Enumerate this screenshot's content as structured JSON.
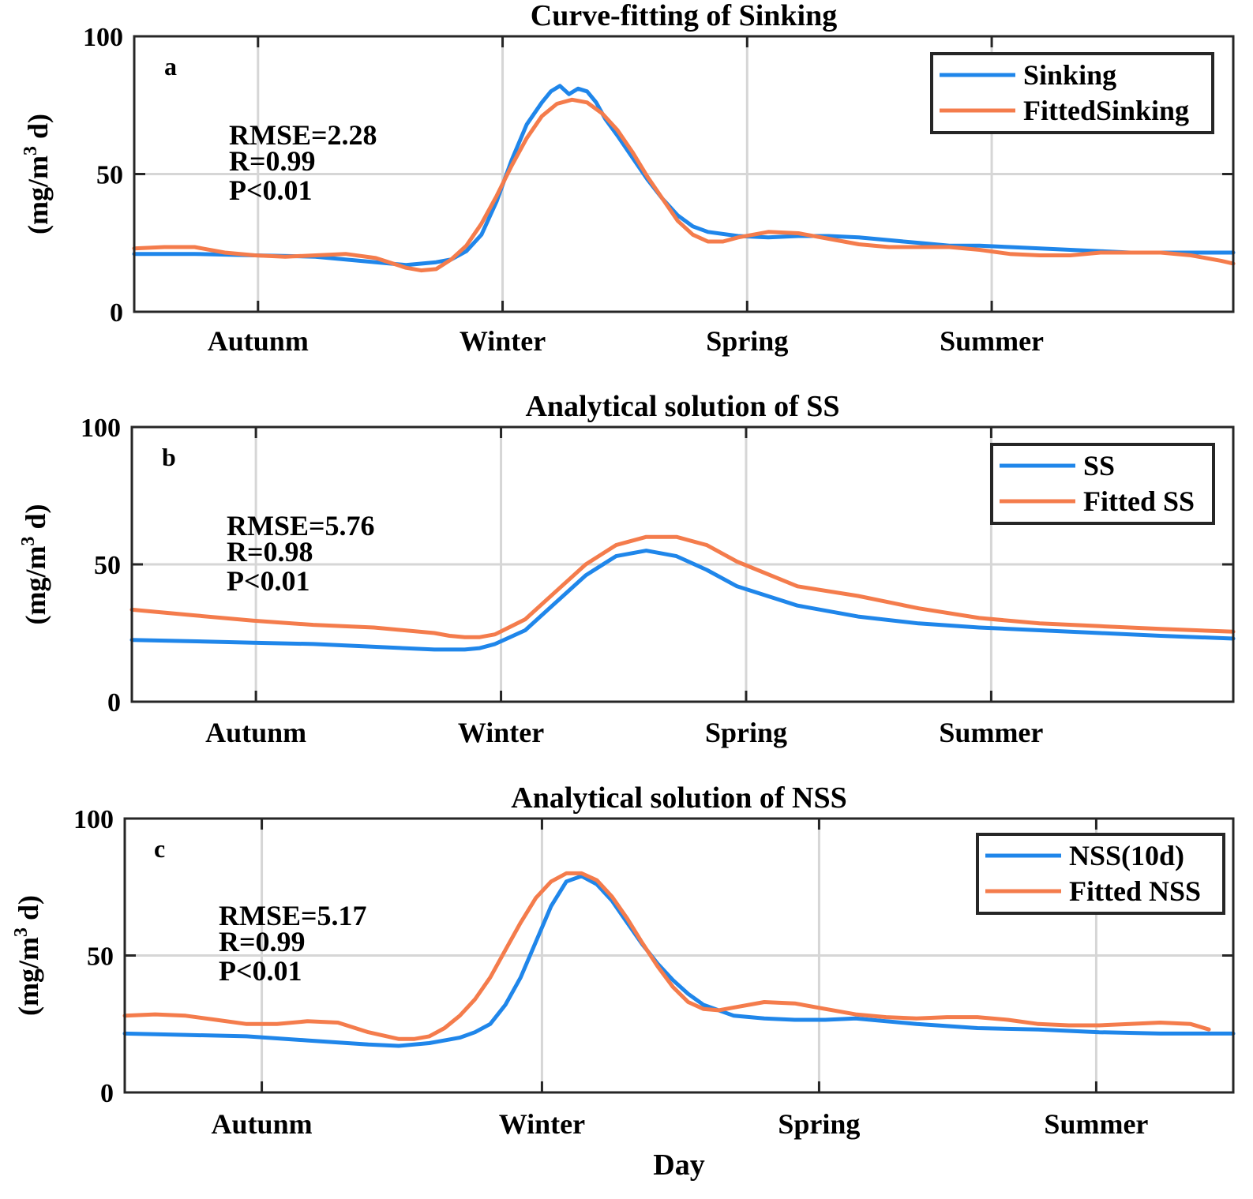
{
  "colors": {
    "observed": "#1f86ea",
    "fitted": "#f47c4c",
    "grid": "#d6d6d6",
    "axis": "#262626"
  },
  "chart_data": [
    {
      "type": "line",
      "panel": "a",
      "title": "Curve-fitting of Sinking",
      "ylabel_prefix": "(mg/m",
      "ylabel_sup": "3",
      "ylabel_suffix": " d)",
      "xlabel": "",
      "xlim": [
        0,
        364
      ],
      "ylim": [
        0,
        100
      ],
      "yticks": [
        0,
        50,
        100
      ],
      "ytick_labels": [
        "0",
        "50",
        "100"
      ],
      "xticks": [
        41,
        122,
        203,
        284
      ],
      "xtick_labels": [
        "Autunm",
        "Winter",
        "Spring",
        "Summer"
      ],
      "stats": [
        "RMSE=2.28",
        "R=0.99",
        "P<0.01"
      ],
      "legend_position": "top-right",
      "series": [
        {
          "name": "Sinking",
          "role": "observed",
          "x": [
            0,
            20,
            40,
            60,
            80,
            90,
            100,
            105,
            110,
            115,
            120,
            125,
            130,
            135,
            138,
            141,
            144,
            147,
            150,
            153,
            156,
            160,
            165,
            170,
            175,
            180,
            185,
            190,
            200,
            210,
            220,
            230,
            240,
            250,
            260,
            270,
            280,
            290,
            300,
            310,
            320,
            330,
            340,
            350,
            364
          ],
          "y": [
            21,
            21,
            20.5,
            20,
            18,
            17,
            18,
            19,
            22,
            28,
            40,
            55,
            68,
            76,
            80,
            82,
            79,
            81,
            80,
            76,
            70,
            64,
            56,
            48,
            41,
            35,
            31,
            29,
            27.5,
            27,
            27.5,
            27.5,
            27,
            26,
            25,
            24,
            24,
            23.5,
            23,
            22.5,
            22,
            21.5,
            21.5,
            21.5,
            21.5
          ]
        },
        {
          "name": "FittedSinking",
          "role": "fitted",
          "x": [
            0,
            10,
            20,
            30,
            40,
            50,
            60,
            70,
            80,
            90,
            95,
            100,
            105,
            110,
            115,
            120,
            125,
            130,
            135,
            140,
            145,
            150,
            155,
            160,
            165,
            170,
            175,
            180,
            185,
            190,
            195,
            200,
            210,
            220,
            230,
            240,
            250,
            260,
            270,
            280,
            290,
            300,
            310,
            320,
            330,
            340,
            350,
            360,
            364
          ],
          "y": [
            23,
            23.5,
            23.5,
            21.5,
            20.5,
            20,
            20.5,
            21,
            19.5,
            16,
            15,
            15.5,
            19,
            24,
            32,
            42,
            53,
            63,
            71,
            75.5,
            77,
            76,
            72,
            66,
            58,
            49,
            41,
            33,
            28,
            25.5,
            25.5,
            27,
            29,
            28.5,
            26.5,
            24.5,
            23.5,
            23.5,
            23.5,
            22.5,
            21,
            20.5,
            20.5,
            21.5,
            21.5,
            21.5,
            20.5,
            18.5,
            17.5
          ]
        }
      ]
    },
    {
      "type": "line",
      "panel": "b",
      "title": "Analytical solution of SS",
      "ylabel_prefix": "(mg/m",
      "ylabel_sup": "3",
      "ylabel_suffix": " d)",
      "xlabel": "",
      "xlim": [
        0,
        364
      ],
      "ylim": [
        0,
        100
      ],
      "yticks": [
        0,
        50,
        100
      ],
      "ytick_labels": [
        "0",
        "50",
        "100"
      ],
      "xticks": [
        41,
        122,
        203,
        284
      ],
      "xtick_labels": [
        "Autunm",
        "Winter",
        "Spring",
        "Summer"
      ],
      "stats": [
        "RMSE=5.76",
        "R=0.98",
        "P<0.01"
      ],
      "legend_position": "top-right",
      "series": [
        {
          "name": "SS",
          "role": "observed",
          "x": [
            0,
            20,
            40,
            60,
            80,
            100,
            110,
            115,
            120,
            130,
            140,
            150,
            160,
            170,
            180,
            190,
            200,
            220,
            240,
            260,
            280,
            300,
            320,
            340,
            364
          ],
          "y": [
            22.5,
            22,
            21.5,
            21,
            20,
            19,
            19,
            19.5,
            21,
            26,
            36,
            46,
            53,
            55,
            53,
            48,
            42,
            35,
            31,
            28.5,
            27,
            26,
            25,
            24,
            23
          ]
        },
        {
          "name": "Fitted SS",
          "role": "fitted",
          "x": [
            0,
            20,
            40,
            60,
            80,
            100,
            105,
            110,
            115,
            120,
            130,
            140,
            150,
            160,
            170,
            180,
            190,
            200,
            220,
            240,
            260,
            280,
            300,
            320,
            340,
            364
          ],
          "y": [
            33.5,
            31.5,
            29.5,
            28,
            27,
            25,
            24,
            23.5,
            23.5,
            24.5,
            30,
            40,
            50,
            57,
            60,
            60,
            57,
            51,
            42,
            38.5,
            34,
            30.5,
            28.5,
            27.5,
            26.5,
            25.5
          ]
        }
      ]
    },
    {
      "type": "line",
      "panel": "c",
      "title": "Analytical solution of NSS",
      "ylabel_prefix": "(mg/m",
      "ylabel_sup": "3",
      "ylabel_suffix": " d)",
      "xlabel": "Day",
      "xlim": [
        0,
        364
      ],
      "ylim": [
        0,
        100
      ],
      "yticks": [
        0,
        50,
        100
      ],
      "ytick_labels": [
        "0",
        "50",
        "100"
      ],
      "xticks": [
        45,
        137,
        228,
        319
      ],
      "xtick_labels": [
        "Autunm",
        "Winter",
        "Spring",
        "Summer"
      ],
      "stats": [
        "RMSE=5.17",
        "R=0.99",
        "P<0.01"
      ],
      "legend_position": "top-right",
      "series": [
        {
          "name": "NSS(10d)",
          "role": "observed",
          "x": [
            0,
            20,
            40,
            60,
            80,
            90,
            100,
            105,
            110,
            115,
            120,
            125,
            130,
            135,
            140,
            145,
            150,
            155,
            160,
            165,
            170,
            175,
            180,
            185,
            190,
            200,
            210,
            220,
            230,
            240,
            260,
            280,
            300,
            320,
            340,
            364
          ],
          "y": [
            21.5,
            21,
            20.5,
            19,
            17.5,
            17,
            18,
            19,
            20,
            22,
            25,
            32,
            42,
            55,
            68,
            77,
            79,
            76,
            70,
            62,
            54,
            47,
            41,
            36,
            32,
            28,
            27,
            26.5,
            26.5,
            27,
            25,
            23.5,
            23,
            22,
            21.5,
            21.5
          ]
        },
        {
          "name": "Fitted NSS",
          "role": "fitted",
          "x": [
            0,
            10,
            20,
            30,
            40,
            50,
            60,
            70,
            80,
            90,
            95,
            100,
            105,
            110,
            115,
            120,
            125,
            130,
            135,
            140,
            145,
            150,
            155,
            160,
            165,
            170,
            175,
            180,
            185,
            190,
            195,
            200,
            210,
            220,
            230,
            240,
            250,
            260,
            270,
            280,
            290,
            300,
            310,
            320,
            330,
            340,
            350,
            356
          ],
          "y": [
            28,
            28.5,
            28,
            26.5,
            25,
            25,
            26,
            25.5,
            22,
            19.5,
            19.5,
            20.5,
            23.5,
            28,
            34,
            42,
            52,
            62,
            71,
            77,
            80,
            80,
            77.5,
            71.5,
            63.5,
            54.5,
            46,
            38.5,
            33,
            30.5,
            30,
            31,
            33,
            32.5,
            30.5,
            28.5,
            27.5,
            27,
            27.5,
            27.5,
            26.5,
            25,
            24.5,
            24.5,
            25,
            25.5,
            25,
            23
          ]
        }
      ]
    }
  ]
}
